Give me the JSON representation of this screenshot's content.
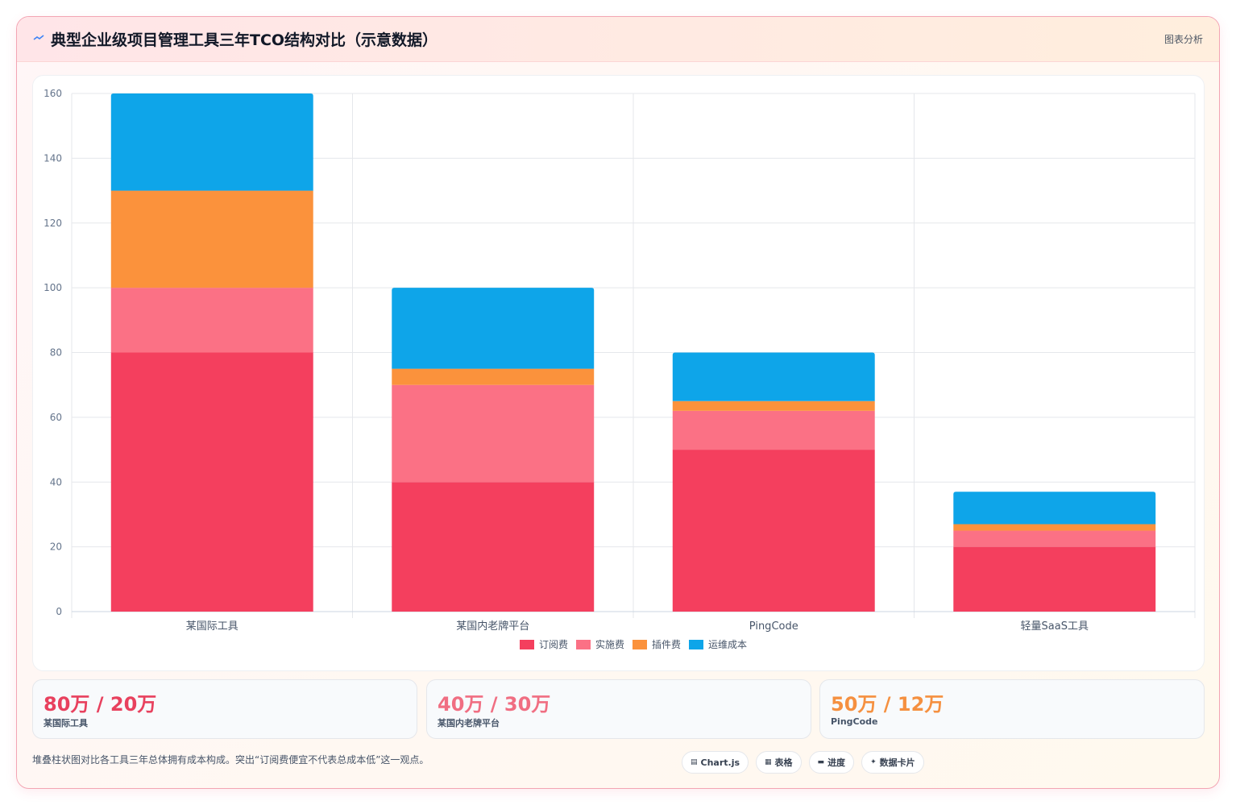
{
  "header": {
    "icon": "chart-line-icon",
    "title": "典型企业级项目管理工具三年TCO结构对比（示意数据）",
    "tag": "图表分析"
  },
  "chart_data": {
    "type": "bar",
    "stacked": true,
    "categories": [
      "某国际工具",
      "某国内老牌平台",
      "PingCode",
      "轻量SaaS工具"
    ],
    "series": [
      {
        "name": "订阅费",
        "color": "#f43f5e",
        "values": [
          80,
          40,
          50,
          20
        ]
      },
      {
        "name": "实施费",
        "color": "#fb7185",
        "values": [
          20,
          30,
          12,
          5
        ]
      },
      {
        "name": "插件费",
        "color": "#fb923c",
        "values": [
          30,
          5,
          3,
          2
        ]
      },
      {
        "name": "运维成本",
        "color": "#0ea5e9",
        "values": [
          30,
          25,
          15,
          10
        ]
      }
    ],
    "ylim": [
      0,
      160
    ],
    "yticks": [
      0,
      20,
      40,
      60,
      80,
      100,
      120,
      140,
      160
    ],
    "grid": true,
    "legend": "bottom"
  },
  "stats": [
    {
      "value": "80万 / 20万",
      "label": "某国际工具",
      "color": "#e8415e"
    },
    {
      "value": "40万 / 30万",
      "label": "某国内老牌平台",
      "color": "#f06e82"
    },
    {
      "value": "50万 / 12万",
      "label": "PingCode",
      "color": "#f59040"
    }
  ],
  "footer": {
    "note": "堆叠柱状图对比各工具三年总体拥有成本构成。突出“订阅费便宜不代表总成本低”这一观点。",
    "pills": [
      {
        "icon": "chart-icon",
        "glyph": "▤",
        "label": "Chart.js"
      },
      {
        "icon": "table-icon",
        "glyph": "▦",
        "label": "表格"
      },
      {
        "icon": "progress-icon",
        "glyph": "▬",
        "label": "进度"
      },
      {
        "icon": "sparkle-icon",
        "glyph": "✦",
        "label": "数据卡片"
      }
    ]
  }
}
